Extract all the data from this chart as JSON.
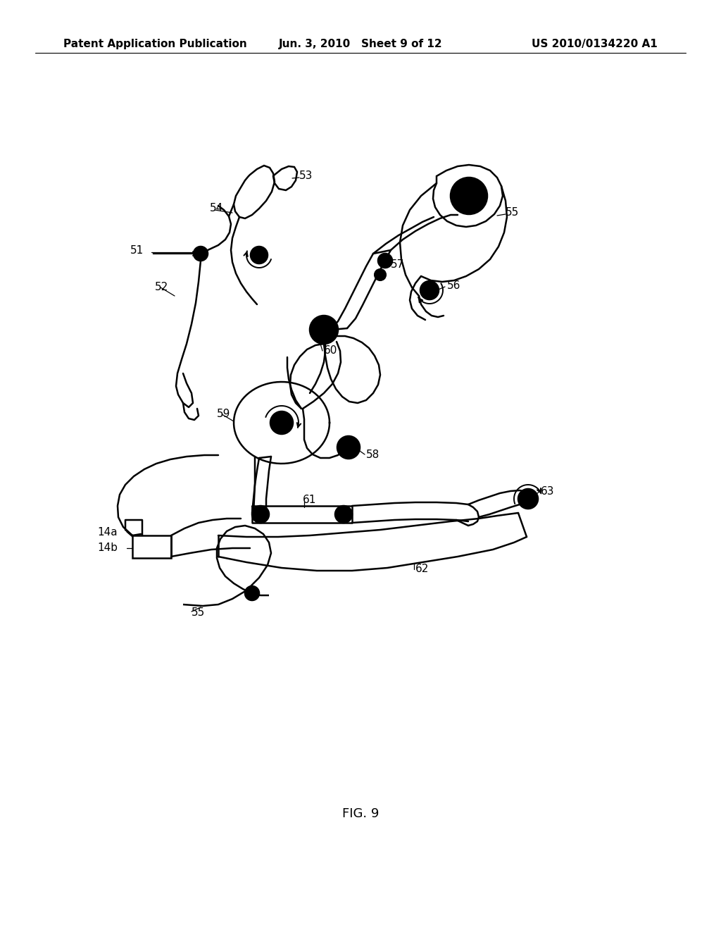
{
  "bg_color": "#ffffff",
  "line_color": "#000000",
  "header_left": "Patent Application Publication",
  "header_mid": "Jun. 3, 2010   Sheet 9 of 12",
  "header_right": "US 2010/0134220 A1",
  "fig_label": "FIG. 9",
  "header_fontsize": 11,
  "fig_label_fontsize": 13,
  "label_fontsize": 11,
  "lw": 1.8
}
